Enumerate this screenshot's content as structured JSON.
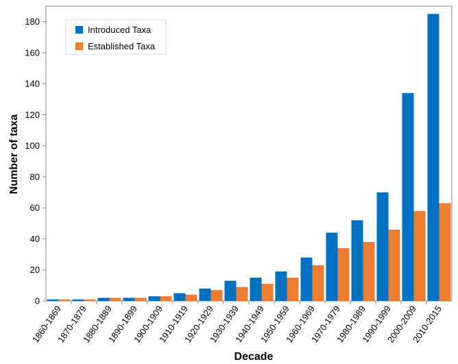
{
  "chart_data": {
    "type": "bar",
    "title": "",
    "xlabel": "Decade",
    "ylabel": "Number of taxa",
    "ylim": [
      0,
      190
    ],
    "yticks": [
      0,
      20,
      40,
      60,
      80,
      100,
      120,
      140,
      160,
      180
    ],
    "grid": false,
    "legend_position": "top-left",
    "categories": [
      "1860-1869",
      "1870-1879",
      "1880-1889",
      "1890-1899",
      "1900-1909",
      "1910-1919",
      "1920-1929",
      "1930-1939",
      "1940-1949",
      "1950-1959",
      "1960-1969",
      "1970-1979",
      "1980-1989",
      "1990-1999",
      "2000-2009",
      "2010-2015"
    ],
    "series": [
      {
        "name": "Introduced Taxa",
        "color": "#0070C0",
        "values": [
          1,
          1,
          2,
          2,
          3,
          5,
          8,
          13,
          15,
          19,
          28,
          44,
          52,
          70,
          134,
          185
        ]
      },
      {
        "name": "Established Taxa",
        "color": "#ED7D31",
        "values": [
          1,
          1,
          2,
          2,
          3,
          4,
          7,
          9,
          11,
          15,
          23,
          34,
          38,
          46,
          58,
          63
        ]
      }
    ]
  }
}
